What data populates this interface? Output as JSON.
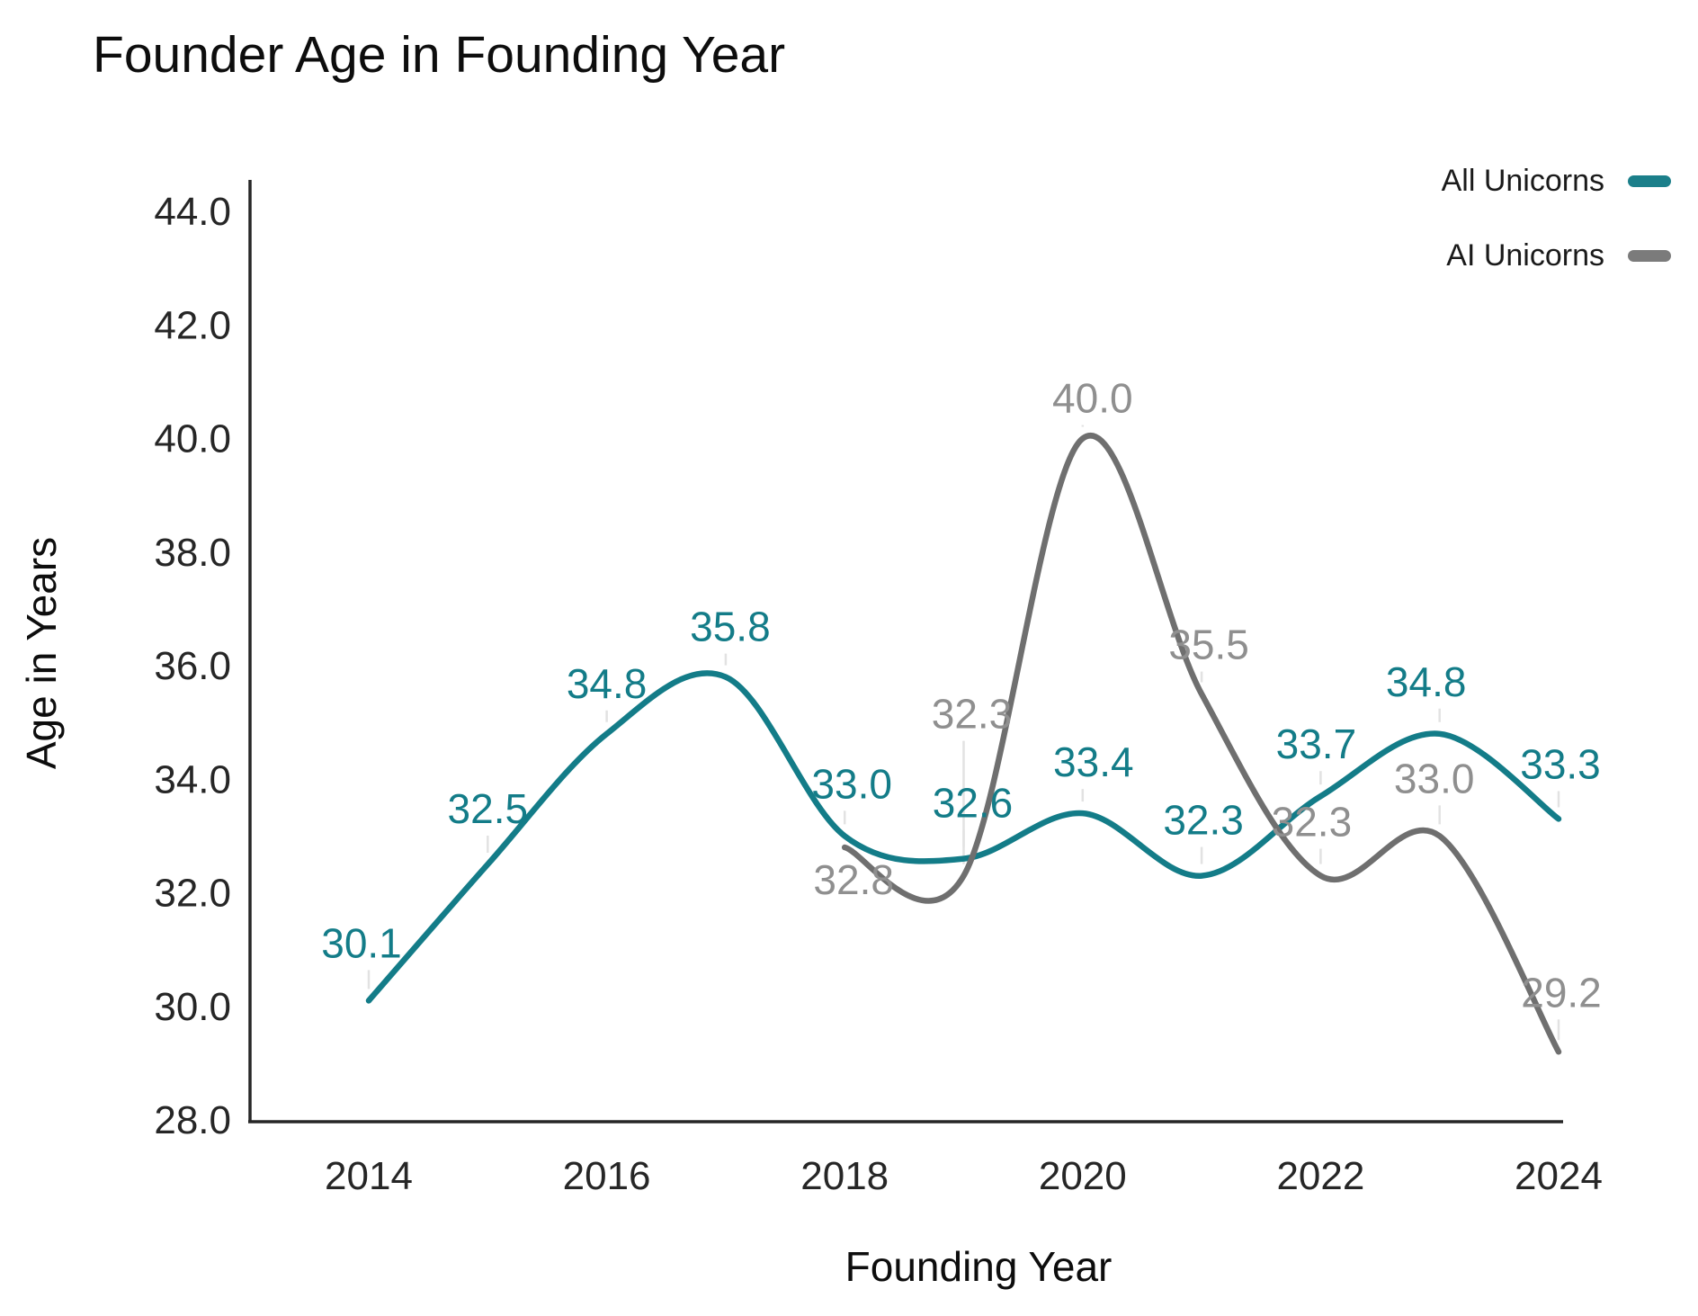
{
  "title": "Founder Age in Founding Year",
  "legend": {
    "items": [
      {
        "label": "All Unicorns",
        "color": "#1b7f8a"
      },
      {
        "label": "AI Unicorns",
        "color": "#7b7b7b"
      }
    ]
  },
  "chart_data": {
    "type": "line",
    "title": "Founder Age in Founding Year",
    "xlabel": "Founding Year",
    "ylabel": "Age in Years",
    "x_ticks": [
      "2014",
      "2016",
      "2018",
      "2020",
      "2022",
      "2024"
    ],
    "y_ticks": [
      "44.0",
      "42.0",
      "40.0",
      "38.0",
      "36.0",
      "34.0",
      "32.0",
      "30.0",
      "28.0"
    ],
    "x_range": [
      2014,
      2024
    ],
    "y_range": [
      28.0,
      44.0
    ],
    "grid": false,
    "legend_position": "top-right",
    "curve": "spline",
    "series": [
      {
        "name": "All Unicorns",
        "color": "#137c88",
        "label_color": "#137c88",
        "x": [
          2014,
          2015,
          2016,
          2017,
          2018,
          2019,
          2020,
          2021,
          2022,
          2023,
          2024
        ],
        "values": [
          30.1,
          32.5,
          34.8,
          35.8,
          33.0,
          32.6,
          33.4,
          32.3,
          33.7,
          34.8,
          33.3
        ],
        "label_offsets": [
          [
            -8,
            -64
          ],
          [
            0,
            -62
          ],
          [
            0,
            -56
          ],
          [
            5,
            -56
          ],
          [
            8,
            -58
          ],
          [
            10,
            -62
          ],
          [
            12,
            -57
          ],
          [
            2,
            -62
          ],
          [
            -5,
            -58
          ],
          [
            -15,
            -58
          ],
          [
            2,
            -61
          ]
        ]
      },
      {
        "name": "AI Unicorns",
        "color": "#6f6f6f",
        "label_color": "#8f8f8f",
        "x": [
          2018,
          2019,
          2020,
          2021,
          2022,
          2023,
          2024
        ],
        "values": [
          32.8,
          32.3,
          40.0,
          35.5,
          32.3,
          33.0,
          29.2
        ],
        "label_offsets": [
          [
            10,
            36
          ],
          [
            9,
            -180
          ],
          [
            11,
            -45
          ],
          [
            8,
            -55
          ],
          [
            -10,
            -60
          ],
          [
            -6,
            -64
          ],
          [
            3,
            -66
          ]
        ]
      }
    ]
  }
}
